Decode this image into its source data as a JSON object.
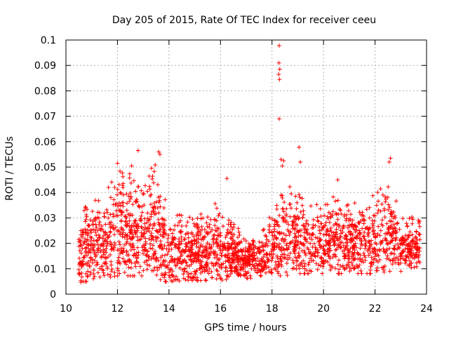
{
  "chart_data": {
    "type": "scatter",
    "title": "Day 205 of 2015, Rate Of TEC Index for receiver ceeu",
    "xlabel": "GPS time / hours",
    "ylabel": "ROTI / TECUs",
    "xlim": [
      10,
      24
    ],
    "ylim": [
      0,
      0.1
    ],
    "x_ticks": [
      10,
      12,
      14,
      16,
      18,
      20,
      22,
      24
    ],
    "x_tick_labels": [
      "10",
      "12",
      "14",
      "16",
      "18",
      "20",
      "22",
      "24"
    ],
    "y_ticks": [
      0,
      0.01,
      0.02,
      0.03,
      0.04,
      0.05,
      0.06,
      0.07,
      0.08,
      0.09,
      0.1
    ],
    "y_tick_labels": [
      "0",
      "0.01",
      "0.02",
      "0.03",
      "0.04",
      "0.05",
      "0.06",
      "0.07",
      "0.08",
      "0.09",
      "0.1"
    ],
    "grid": true,
    "marker": "+",
    "color": "#ff0000",
    "series": [
      {
        "name": "ROTI",
        "x_range": [
          10.5,
          23.75
        ],
        "points_estimated": 2400,
        "envelope": [
          {
            "x": 10.5,
            "low": 0.005,
            "high": 0.033
          },
          {
            "x": 11.0,
            "low": 0.006,
            "high": 0.036
          },
          {
            "x": 11.5,
            "low": 0.007,
            "high": 0.04
          },
          {
            "x": 12.0,
            "low": 0.008,
            "high": 0.048
          },
          {
            "x": 12.5,
            "low": 0.008,
            "high": 0.05
          },
          {
            "x": 13.0,
            "low": 0.008,
            "high": 0.045
          },
          {
            "x": 13.5,
            "low": 0.007,
            "high": 0.055
          },
          {
            "x": 14.0,
            "low": 0.005,
            "high": 0.03
          },
          {
            "x": 14.5,
            "low": 0.006,
            "high": 0.032
          },
          {
            "x": 15.0,
            "low": 0.006,
            "high": 0.03
          },
          {
            "x": 15.5,
            "low": 0.006,
            "high": 0.034
          },
          {
            "x": 16.0,
            "low": 0.006,
            "high": 0.038
          },
          {
            "x": 16.5,
            "low": 0.007,
            "high": 0.03
          },
          {
            "x": 17.0,
            "low": 0.007,
            "high": 0.022
          },
          {
            "x": 17.5,
            "low": 0.007,
            "high": 0.024
          },
          {
            "x": 18.0,
            "low": 0.008,
            "high": 0.032
          },
          {
            "x": 18.5,
            "low": 0.008,
            "high": 0.045
          },
          {
            "x": 19.0,
            "low": 0.009,
            "high": 0.04
          },
          {
            "x": 19.5,
            "low": 0.009,
            "high": 0.036
          },
          {
            "x": 20.0,
            "low": 0.009,
            "high": 0.035
          },
          {
            "x": 20.5,
            "low": 0.009,
            "high": 0.04
          },
          {
            "x": 21.0,
            "low": 0.009,
            "high": 0.035
          },
          {
            "x": 21.5,
            "low": 0.009,
            "high": 0.038
          },
          {
            "x": 22.0,
            "low": 0.009,
            "high": 0.04
          },
          {
            "x": 22.5,
            "low": 0.01,
            "high": 0.045
          },
          {
            "x": 23.0,
            "low": 0.01,
            "high": 0.033
          },
          {
            "x": 23.5,
            "low": 0.01,
            "high": 0.03
          }
        ],
        "outliers": [
          {
            "x": 18.28,
            "y": 0.0978
          },
          {
            "x": 18.27,
            "y": 0.091
          },
          {
            "x": 18.3,
            "y": 0.0885
          },
          {
            "x": 18.26,
            "y": 0.0865
          },
          {
            "x": 18.29,
            "y": 0.0845
          },
          {
            "x": 18.28,
            "y": 0.069
          },
          {
            "x": 19.05,
            "y": 0.0578
          },
          {
            "x": 12.8,
            "y": 0.0565
          },
          {
            "x": 13.6,
            "y": 0.056
          },
          {
            "x": 13.65,
            "y": 0.055
          },
          {
            "x": 22.6,
            "y": 0.0535
          },
          {
            "x": 12.0,
            "y": 0.0515
          },
          {
            "x": 18.35,
            "y": 0.053
          },
          {
            "x": 18.45,
            "y": 0.0525
          },
          {
            "x": 19.1,
            "y": 0.052
          },
          {
            "x": 22.55,
            "y": 0.052
          },
          {
            "x": 12.55,
            "y": 0.0505
          },
          {
            "x": 18.4,
            "y": 0.0505
          },
          {
            "x": 16.25,
            "y": 0.0455
          },
          {
            "x": 20.55,
            "y": 0.045
          }
        ]
      }
    ]
  }
}
